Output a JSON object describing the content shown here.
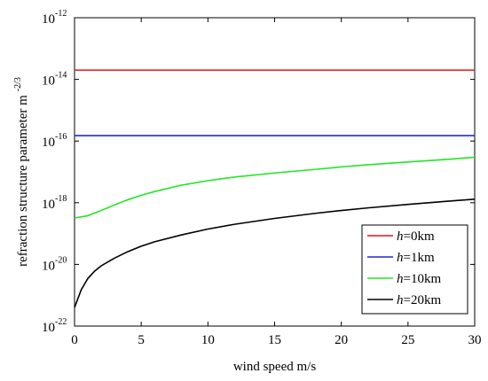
{
  "chart_data": {
    "type": "line",
    "title": "",
    "xlabel": "wind speed m/s",
    "ylabel_main": "refraction structure parameter m",
    "ylabel_exp": "-2/3",
    "xlim": [
      0,
      30
    ],
    "ylim": [
      1e-22,
      1e-12
    ],
    "y_scale": "log",
    "grid": false,
    "legend_position": "bottom-right",
    "x_ticks": [
      0,
      5,
      10,
      15,
      20,
      25,
      30
    ],
    "y_ticks": [
      {
        "value": 1e-22,
        "base": "10",
        "exp": "-22"
      },
      {
        "value": 1e-20,
        "base": "10",
        "exp": "-20"
      },
      {
        "value": 1e-18,
        "base": "10",
        "exp": "-18"
      },
      {
        "value": 1e-16,
        "base": "10",
        "exp": "-16"
      },
      {
        "value": 1e-14,
        "base": "10",
        "exp": "-14"
      },
      {
        "value": 1e-12,
        "base": "10",
        "exp": "-12"
      }
    ],
    "series": [
      {
        "name_var": "h",
        "name_rest": "=0km",
        "color": "#e8141a",
        "x": [
          0,
          5,
          10,
          15,
          20,
          25,
          30
        ],
        "y": [
          2e-14,
          2e-14,
          2e-14,
          2e-14,
          2e-14,
          2e-14,
          2e-14
        ]
      },
      {
        "name_var": "h",
        "name_rest": "=1km",
        "color": "#1f2bd6",
        "x": [
          0,
          5,
          10,
          15,
          20,
          25,
          30
        ],
        "y": [
          1.5e-16,
          1.5e-16,
          1.5e-16,
          1.5e-16,
          1.5e-16,
          1.5e-16,
          1.5e-16
        ]
      },
      {
        "name_var": "h",
        "name_rest": "=10km",
        "color": "#22e622",
        "x": [
          0,
          1,
          2,
          3,
          4,
          5,
          6,
          8,
          10,
          12,
          15,
          18,
          20,
          22,
          25,
          28,
          30
        ],
        "y": [
          3.2e-19,
          3.8e-19,
          5.6e-19,
          8.5e-19,
          1.25e-18,
          1.75e-18,
          2.3e-18,
          3.7e-18,
          5.2e-18,
          6.8e-18,
          9.2e-18,
          1.2e-17,
          1.45e-17,
          1.7e-17,
          2.1e-17,
          2.55e-17,
          3e-17
        ]
      },
      {
        "name_var": "h",
        "name_rest": "=20km",
        "color": "#000000",
        "x": [
          0,
          0.5,
          1,
          1.5,
          2,
          3,
          4,
          5,
          6,
          8,
          10,
          12,
          15,
          18,
          20,
          22,
          25,
          28,
          30
        ],
        "y": [
          4e-22,
          1.5e-21,
          3.5e-21,
          6e-21,
          9e-21,
          1.6e-20,
          2.6e-20,
          3.9e-20,
          5.4e-20,
          9e-20,
          1.4e-19,
          2e-19,
          3.1e-19,
          4.5e-19,
          5.6e-19,
          6.8e-19,
          8.8e-19,
          1.12e-18,
          1.3e-18
        ]
      }
    ]
  }
}
